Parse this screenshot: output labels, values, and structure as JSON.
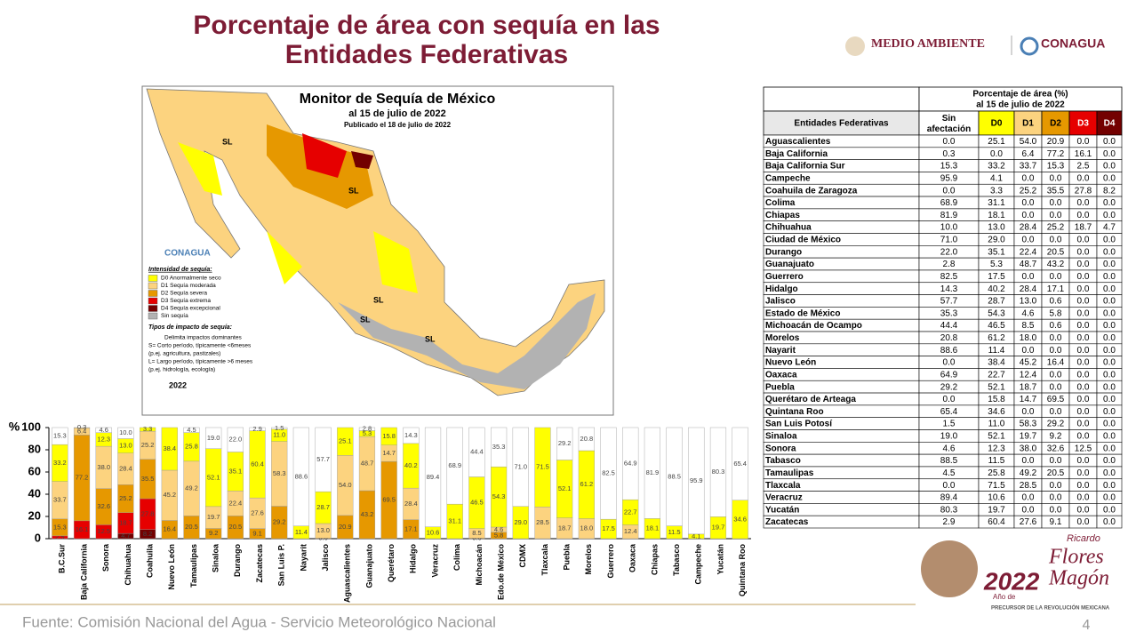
{
  "header": {
    "title_lines": [
      "Porcentaje de área con sequía en las",
      "Entidades Federativas"
    ],
    "logos": [
      "MEDIO AMBIENTE",
      "CONAGUA"
    ]
  },
  "map": {
    "title": "Monitor de Sequía de México",
    "subtitle": "al 15 de julio de 2022",
    "published": "Publicado el 18 de julio de 2022",
    "brand": "CONAGUA",
    "legend_title": "Intensidad de sequía:",
    "legend": [
      {
        "label": "D0 Anormalmente seco",
        "color": "#ffff00"
      },
      {
        "label": "D1 Sequía moderada",
        "color": "#fcd37f"
      },
      {
        "label": "D2 Sequía severa",
        "color": "#e69800"
      },
      {
        "label": "D3 Sequía extrema",
        "color": "#e60000"
      },
      {
        "label": "D4 Sequía excepcional",
        "color": "#730000"
      },
      {
        "label": "Sin sequía",
        "color": "#b2b2b2"
      }
    ],
    "impact_title": "Tipos de impacto de sequía:",
    "impact_lines": [
      "Delimita impactos dominantes",
      "S= Corto período, típicamente <6meses",
      "(p.ej. agricultura, pastizales)",
      "L= Largo período, típicamente >6 meses",
      "(p.ej. hidrología, ecología)"
    ],
    "year": "2022",
    "region_labels": [
      "SL",
      "SL",
      "SL",
      "SL",
      "SL"
    ]
  },
  "table": {
    "title_lines": [
      "Porcentaje de área (%)",
      "al 15 de julio de 2022"
    ],
    "columns": [
      "Entidades Federativas",
      "Sin afectación",
      "D0",
      "D1",
      "D2",
      "D3",
      "D4"
    ],
    "rows": [
      [
        "Aguascalientes",
        "0.0",
        "25.1",
        "54.0",
        "20.9",
        "0.0",
        "0.0"
      ],
      [
        "Baja California",
        "0.3",
        "0.0",
        "6.4",
        "77.2",
        "16.1",
        "0.0"
      ],
      [
        "Baja California Sur",
        "15.3",
        "33.2",
        "33.7",
        "15.3",
        "2.5",
        "0.0"
      ],
      [
        "Campeche",
        "95.9",
        "4.1",
        "0.0",
        "0.0",
        "0.0",
        "0.0"
      ],
      [
        "Coahuila de Zaragoza",
        "0.0",
        "3.3",
        "25.2",
        "35.5",
        "27.8",
        "8.2"
      ],
      [
        "Colima",
        "68.9",
        "31.1",
        "0.0",
        "0.0",
        "0.0",
        "0.0"
      ],
      [
        "Chiapas",
        "81.9",
        "18.1",
        "0.0",
        "0.0",
        "0.0",
        "0.0"
      ],
      [
        "Chihuahua",
        "10.0",
        "13.0",
        "28.4",
        "25.2",
        "18.7",
        "4.7"
      ],
      [
        "Ciudad de México",
        "71.0",
        "29.0",
        "0.0",
        "0.0",
        "0.0",
        "0.0"
      ],
      [
        "Durango",
        "22.0",
        "35.1",
        "22.4",
        "20.5",
        "0.0",
        "0.0"
      ],
      [
        "Guanajuato",
        "2.8",
        "5.3",
        "48.7",
        "43.2",
        "0.0",
        "0.0"
      ],
      [
        "Guerrero",
        "82.5",
        "17.5",
        "0.0",
        "0.0",
        "0.0",
        "0.0"
      ],
      [
        "Hidalgo",
        "14.3",
        "40.2",
        "28.4",
        "17.1",
        "0.0",
        "0.0"
      ],
      [
        "Jalisco",
        "57.7",
        "28.7",
        "13.0",
        "0.6",
        "0.0",
        "0.0"
      ],
      [
        "Estado de México",
        "35.3",
        "54.3",
        "4.6",
        "5.8",
        "0.0",
        "0.0"
      ],
      [
        "Michoacán de Ocampo",
        "44.4",
        "46.5",
        "8.5",
        "0.6",
        "0.0",
        "0.0"
      ],
      [
        "Morelos",
        "20.8",
        "61.2",
        "18.0",
        "0.0",
        "0.0",
        "0.0"
      ],
      [
        "Nayarit",
        "88.6",
        "11.4",
        "0.0",
        "0.0",
        "0.0",
        "0.0"
      ],
      [
        "Nuevo León",
        "0.0",
        "38.4",
        "45.2",
        "16.4",
        "0.0",
        "0.0"
      ],
      [
        "Oaxaca",
        "64.9",
        "22.7",
        "12.4",
        "0.0",
        "0.0",
        "0.0"
      ],
      [
        "Puebla",
        "29.2",
        "52.1",
        "18.7",
        "0.0",
        "0.0",
        "0.0"
      ],
      [
        "Querétaro de Arteaga",
        "0.0",
        "15.8",
        "14.7",
        "69.5",
        "0.0",
        "0.0"
      ],
      [
        "Quintana Roo",
        "65.4",
        "34.6",
        "0.0",
        "0.0",
        "0.0",
        "0.0"
      ],
      [
        "San Luis Potosí",
        "1.5",
        "11.0",
        "58.3",
        "29.2",
        "0.0",
        "0.0"
      ],
      [
        "Sinaloa",
        "19.0",
        "52.1",
        "19.7",
        "9.2",
        "0.0",
        "0.0"
      ],
      [
        "Sonora",
        "4.6",
        "12.3",
        "38.0",
        "32.6",
        "12.5",
        "0.0"
      ],
      [
        "Tabasco",
        "88.5",
        "11.5",
        "0.0",
        "0.0",
        "0.0",
        "0.0"
      ],
      [
        "Tamaulipas",
        "4.5",
        "25.8",
        "49.2",
        "20.5",
        "0.0",
        "0.0"
      ],
      [
        "Tlaxcala",
        "0.0",
        "71.5",
        "28.5",
        "0.0",
        "0.0",
        "0.0"
      ],
      [
        "Veracruz",
        "89.4",
        "10.6",
        "0.0",
        "0.0",
        "0.0",
        "0.0"
      ],
      [
        "Yucatán",
        "80.3",
        "19.7",
        "0.0",
        "0.0",
        "0.0",
        "0.0"
      ],
      [
        "Zacatecas",
        "2.9",
        "60.4",
        "27.6",
        "9.1",
        "0.0",
        "0.0"
      ]
    ]
  },
  "chart_data": {
    "type": "bar",
    "stacked": true,
    "y_label": "%",
    "ylim": [
      0,
      100
    ],
    "yticks": [
      0,
      20,
      40,
      60,
      80,
      100
    ],
    "categories": [
      "B.C.Sur",
      "Baja California",
      "Sonora",
      "Chihuahua",
      "Coahuila",
      "Nuevo León",
      "Tamaulipas",
      "Sinaloa",
      "Durango",
      "Zacatecas",
      "San Luis P.",
      "Nayarit",
      "Jalisco",
      "Aguascalientes",
      "Guanajuato",
      "Querétaro",
      "Hidalgo",
      "Veracruz",
      "Colima",
      "Michoacán",
      "Edo.de México",
      "CDMX",
      "Tlaxcala",
      "Puebla",
      "Morelos",
      "Guerrero",
      "Oaxaca",
      "Chiapas",
      "Tabasco",
      "Campeche",
      "Yucatán",
      "Quintana Roo"
    ],
    "series": [
      {
        "name": "D4",
        "color": "#730000",
        "values": [
          0,
          0,
          0,
          4.7,
          8.2,
          0,
          0,
          0,
          0,
          0,
          0,
          0,
          0,
          0,
          0,
          0,
          0,
          0,
          0,
          0,
          0,
          0,
          0,
          0,
          0,
          0,
          0,
          0,
          0,
          0,
          0,
          0
        ],
        "value_labels": [
          null,
          null,
          null,
          "4.7",
          "8.2",
          null,
          null,
          null,
          null,
          null,
          null,
          null,
          null,
          null,
          null,
          null,
          null,
          null,
          null,
          null,
          null,
          null,
          null,
          null,
          null,
          null,
          null,
          null,
          null,
          null,
          null,
          null
        ]
      },
      {
        "name": "D3",
        "color": "#e60000",
        "values": [
          2.5,
          16.1,
          12.5,
          18.7,
          27.8,
          0,
          0,
          0,
          0,
          0,
          0,
          0,
          0,
          0,
          0,
          0,
          0,
          0,
          0,
          0,
          0,
          0,
          0,
          0,
          0,
          0,
          0,
          0,
          0,
          0,
          0,
          0
        ],
        "value_labels": [
          "2.5",
          "16.1",
          "12.5",
          "18.7",
          "27.8",
          null,
          null,
          null,
          null,
          null,
          null,
          null,
          null,
          null,
          null,
          null,
          null,
          null,
          null,
          null,
          null,
          null,
          null,
          null,
          null,
          null,
          null,
          null,
          null,
          null,
          null,
          null
        ]
      },
      {
        "name": "D2",
        "color": "#e69800",
        "values": [
          15.3,
          77.2,
          32.6,
          25.2,
          35.5,
          16.4,
          20.5,
          9.2,
          20.5,
          9.1,
          29.2,
          0,
          0.6,
          20.9,
          43.2,
          69.5,
          17.1,
          0,
          0,
          0.6,
          5.8,
          0,
          0,
          0,
          0,
          0,
          0,
          0,
          0,
          0,
          0,
          0
        ],
        "value_labels": [
          "15.3",
          "77.2",
          "32.6",
          "25.2",
          "35.5",
          "16.4",
          "20.5",
          "9.2",
          "20.5",
          "9.1",
          "29.2",
          null,
          "0.6",
          "20.9",
          "43.2",
          "69.5",
          "17.1",
          null,
          null,
          "0.6",
          "5.8",
          null,
          null,
          null,
          null,
          null,
          null,
          null,
          null,
          null,
          null,
          null
        ]
      },
      {
        "name": "D1",
        "color": "#fcd37f",
        "values": [
          33.7,
          6.4,
          38.0,
          28.4,
          25.2,
          45.2,
          49.2,
          19.7,
          22.4,
          27.6,
          58.3,
          0,
          13.0,
          54.0,
          48.7,
          14.7,
          28.4,
          0,
          0,
          8.5,
          4.6,
          0,
          28.5,
          18.7,
          18.0,
          0,
          12.4,
          0,
          0,
          0,
          0,
          0
        ],
        "value_labels": [
          "33.7",
          "6.4",
          "38.0",
          "28.4",
          "25.2",
          "45.2",
          "49.2",
          "19.7",
          "22.4",
          "27.6",
          "58.3",
          null,
          "13.0",
          "54.0",
          "48.7",
          "14.7",
          "28.4",
          null,
          null,
          "8.5",
          "4.6",
          null,
          "28.5",
          "18.7",
          "18.0",
          null,
          "12.4",
          null,
          null,
          null,
          null,
          null
        ]
      },
      {
        "name": "D0",
        "color": "#ffff00",
        "values": [
          33.2,
          0,
          12.3,
          13.0,
          3.3,
          38.4,
          25.8,
          52.1,
          35.1,
          60.4,
          11.0,
          11.4,
          28.7,
          25.1,
          5.3,
          15.8,
          40.2,
          10.6,
          31.1,
          46.5,
          54.3,
          29.0,
          71.5,
          52.1,
          61.2,
          17.5,
          22.7,
          18.1,
          11.5,
          4.1,
          19.7,
          34.6
        ],
        "value_labels": [
          "33.2",
          null,
          "12.3",
          "13.0",
          "3.3",
          "38.4",
          "25.8",
          "52.1",
          "35.1",
          "60.4",
          "11.0",
          "11.4",
          "28.7",
          "25.1",
          "5.3",
          "15.8",
          "40.2",
          "10.6",
          "31.1",
          "46.5",
          "54.3",
          "29.0",
          "71.5",
          "52.1",
          "61.2",
          "17.5",
          "22.7",
          "18.1",
          "11.5",
          "4.1",
          "19.7",
          "34.6"
        ]
      },
      {
        "name": "Sin afectación",
        "color": "#ffffff",
        "values": [
          15.3,
          0.3,
          4.6,
          10.0,
          0,
          0,
          4.5,
          19.0,
          22.0,
          2.9,
          1.5,
          88.6,
          57.7,
          0,
          2.8,
          0,
          14.3,
          89.4,
          68.9,
          44.4,
          35.3,
          71.0,
          0,
          29.2,
          20.8,
          82.5,
          64.9,
          81.9,
          88.5,
          95.9,
          80.3,
          65.4
        ],
        "value_labels": [
          "15.3",
          "0.3",
          "4.6",
          "10.0",
          null,
          null,
          "4.5",
          "19.0",
          "22.0",
          "2.9",
          "1.5",
          "88.6",
          "57.7",
          null,
          "2.8",
          null,
          "14.3",
          "89.4",
          "68.9",
          "44.4",
          "35.3",
          "71.0",
          null,
          "29.2",
          "20.8",
          "82.5",
          "64.9",
          "81.9",
          "88.5",
          "95.9",
          "80.3",
          "65.4"
        ]
      }
    ]
  },
  "footer": {
    "source": "Fuente: Comisión Nacional del Agua - Servicio Meteorológico Nacional",
    "page": "4",
    "badge": [
      "2022",
      "Año de",
      "Ricardo",
      "Flores",
      "Magón",
      "PRECURSOR DE LA REVOLUCIÓN MEXICANA"
    ]
  }
}
